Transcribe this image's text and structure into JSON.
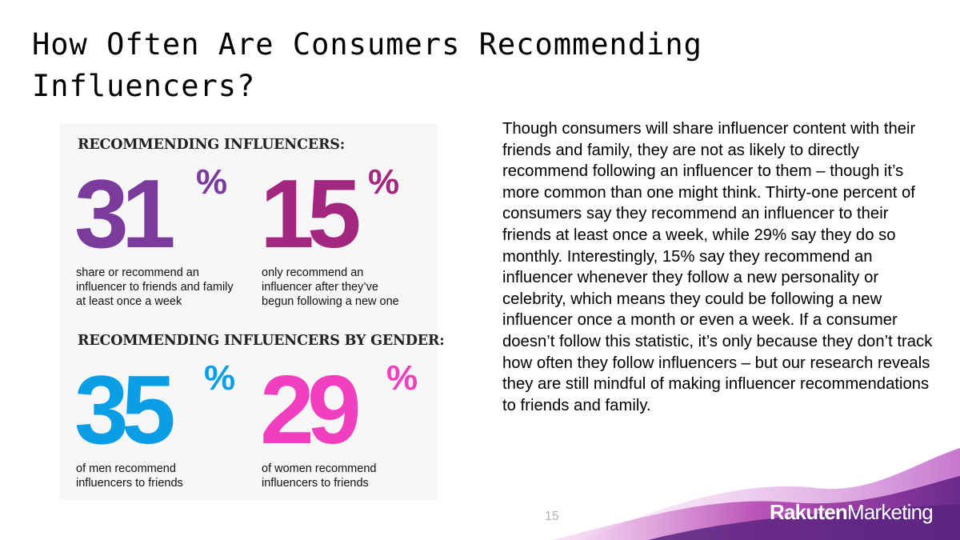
{
  "slide": {
    "title": "How Often Are Consumers Recommending Influencers?",
    "page_number": "15"
  },
  "infographic": {
    "section1_heading": "RECOMMENDING INFLUENCERS:",
    "section2_heading": "RECOMMENDING INFLUENCERS BY GENDER:",
    "stats": [
      {
        "value": "31",
        "unit": "%",
        "caption": "share or recommend an influencer to friends and family at least once a week",
        "color": "#7a3b9c"
      },
      {
        "value": "15",
        "unit": "%",
        "caption": "only recommend an influencer after they’ve begun following a new one",
        "color": "#a3277f"
      },
      {
        "value": "35",
        "unit": "%",
        "caption": "of men recommend influencers to friends",
        "color": "#0a9ee6"
      },
      {
        "value": "29",
        "unit": "%",
        "caption": "of women recommend influencers to friends",
        "color": "#f03fbf"
      }
    ]
  },
  "body_text": "Though consumers will share influencer content with their friends and family, they are not as likely to directly recommend following an influencer to them – though it’s more common than one might think. Thirty-one percent of consumers say they recommend an influencer to their friends at least once a week, while 29% say they do so monthly. Interestingly, 15% say they recommend an influencer whenever they follow a new personality or celebrity, which means they could be following a new influencer once a month or even a week. If a consumer doesn’t follow this statistic, it’s only because they don’t track how often they follow influencers – but our research reveals they are still mindful of making influencer recommendations to friends and family.",
  "brand": {
    "logo_bold": "Rakuten",
    "logo_light": "Marketing",
    "wave_colors": [
      "#6a2a8c",
      "#b23fae",
      "#e9a7e3"
    ]
  }
}
